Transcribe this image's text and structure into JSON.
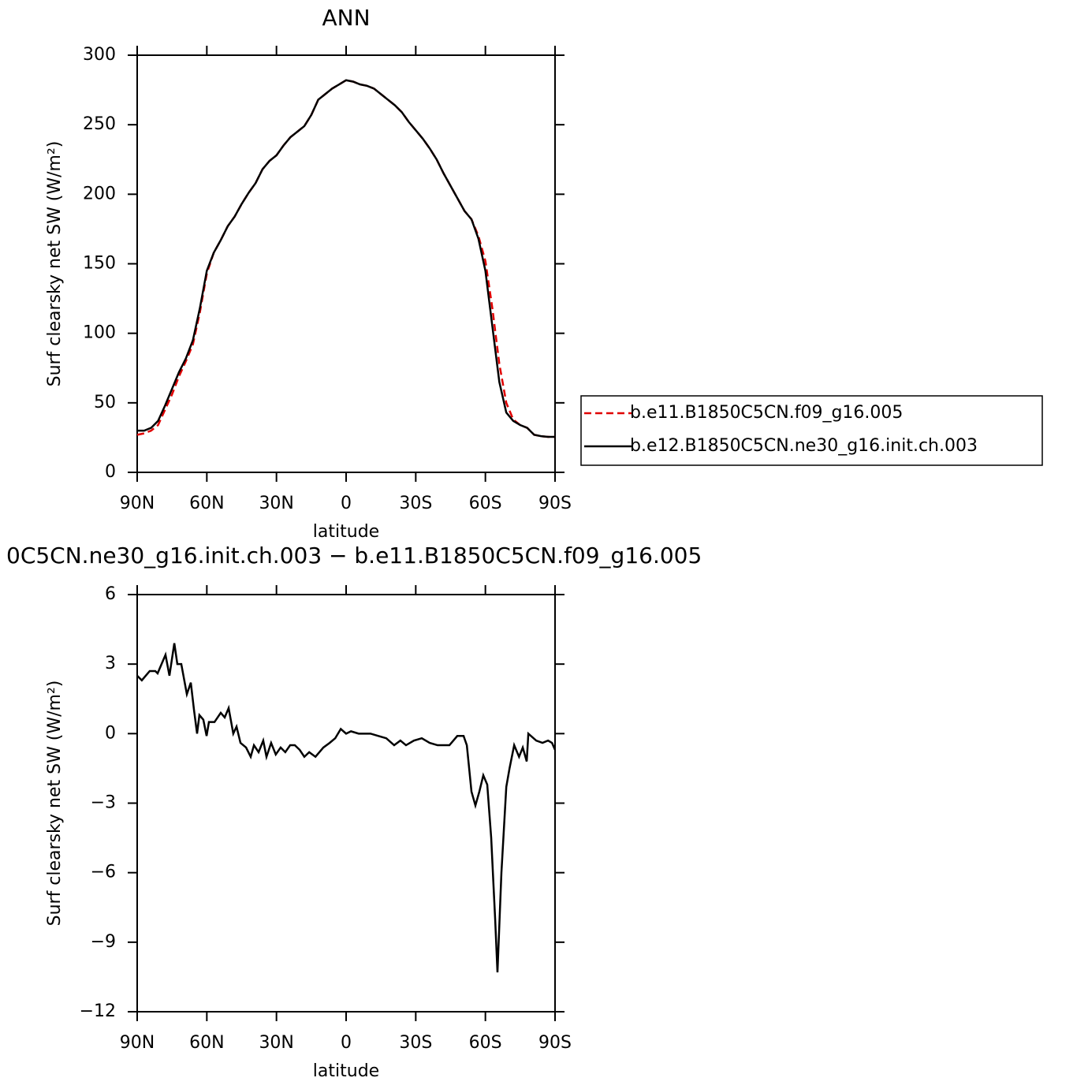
{
  "chart_data": [
    {
      "type": "line",
      "title": "ANN",
      "xlabel": "latitude",
      "ylabel": "Surf clearsky net SW (W/m²)",
      "x": [
        90,
        87,
        84,
        81,
        78,
        75,
        72,
        69,
        66,
        63,
        60,
        57,
        54,
        51,
        48,
        45,
        42,
        39,
        36,
        33,
        30,
        27,
        24,
        21,
        18,
        15,
        12,
        9,
        6,
        3,
        0,
        -3,
        -6,
        -9,
        -12,
        -15,
        -18,
        -21,
        -24,
        -27,
        -30,
        -33,
        -36,
        -39,
        -42,
        -45,
        -48,
        -51,
        -54,
        -57,
        -60,
        -63,
        -66,
        -69,
        -72,
        -75,
        -78,
        -81,
        -84,
        -87,
        -90
      ],
      "series": [
        {
          "name": "b.e11.B1850C5CN.f09_g16.005",
          "color": "#e00000",
          "linestyle": "dashed",
          "values": [
            27,
            28,
            30,
            34,
            45,
            56,
            69,
            80,
            92,
            115,
            143,
            158,
            167,
            177,
            184,
            193,
            201,
            208,
            218,
            224,
            228,
            235,
            241,
            245,
            249,
            257,
            268,
            272,
            276,
            279,
            282,
            281,
            279,
            278,
            276,
            272,
            268,
            264,
            259,
            252,
            246,
            240,
            233,
            225,
            215,
            206,
            197,
            188,
            182,
            170,
            152,
            118,
            78,
            50,
            38,
            34,
            32,
            27,
            26,
            25.5,
            25.5
          ]
        },
        {
          "name": "b.e12.B1850C5CN.ne30_g16.init.ch.003",
          "color": "#000000",
          "linestyle": "solid",
          "values": [
            30,
            30,
            32,
            37,
            48,
            60,
            72,
            82,
            95,
            118,
            145,
            158,
            167,
            177,
            184,
            193,
            201,
            208,
            218,
            224,
            228,
            235,
            241,
            245,
            249,
            257,
            268,
            272,
            276,
            279,
            282,
            281,
            279,
            278,
            276,
            272,
            268,
            264,
            259,
            252,
            246,
            240,
            233,
            225,
            215,
            206,
            197,
            188,
            182,
            168,
            145,
            105,
            65,
            43,
            37,
            34,
            32,
            27,
            26,
            25.5,
            25.5
          ]
        }
      ],
      "xlim": [
        90,
        -90
      ],
      "xticks": [
        {
          "value": 90,
          "label": "90N"
        },
        {
          "value": 60,
          "label": "60N"
        },
        {
          "value": 30,
          "label": "30N"
        },
        0,
        {
          "value": -30,
          "label": "30S"
        },
        {
          "value": -60,
          "label": "60S"
        },
        {
          "value": -90,
          "label": "90S"
        }
      ],
      "ylim": [
        0,
        300
      ],
      "yticks": [
        0,
        50,
        100,
        150,
        200,
        250,
        300
      ],
      "legend": "right"
    },
    {
      "type": "line",
      "title": "0C5CN.ne30_g16.init.ch.003 − b.e11.B1850C5CN.f09_g16.005",
      "xlabel": "latitude",
      "ylabel": "Surf clearsky net SW (W/m²)",
      "x": [
        90,
        88.0,
        84.6,
        82.2,
        81.2,
        79.5,
        77.8,
        76.1,
        74.0,
        72.7,
        71.0,
        68.6,
        66.9,
        65.5,
        64.2,
        63.2,
        61.5,
        60.1,
        59.1,
        56.7,
        54.0,
        52.3,
        50.6,
        48.6,
        47.2,
        45.5,
        43.1,
        41.1,
        39.7,
        37.7,
        35.7,
        34.3,
        32.3,
        30.3,
        28.2,
        26.2,
        24.1,
        22.1,
        20.0,
        18.0,
        15.9,
        13.2,
        9.8,
        7.1,
        4.7,
        2.3,
        0,
        -2.1,
        -5.4,
        -10.5,
        -13.9,
        -17.3,
        -20.7,
        -23.4,
        -25.8,
        -29.2,
        -32.6,
        -36.0,
        -39.4,
        -44.5,
        -47.9,
        -50.6,
        -52.0,
        -54.0,
        -55.7,
        -57.4,
        -59.1,
        -60.8,
        -62.5,
        -64.2,
        -65.2,
        -66.9,
        -69.0,
        -70.4,
        -72.4,
        -74.5,
        -76.1,
        -77.8,
        -78.5,
        -81.9,
        -84.6,
        -87.0,
        -88.7,
        -90
      ],
      "series": [
        {
          "color": "#000000",
          "linestyle": "solid",
          "values": [
            2.5,
            2.3,
            2.7,
            2.7,
            2.6,
            3.0,
            3.4,
            2.5,
            3.9,
            3.0,
            3.0,
            1.7,
            2.2,
            1.0,
            0.0,
            0.8,
            0.6,
            -0.1,
            0.5,
            0.5,
            0.9,
            0.7,
            1.1,
            0.0,
            0.3,
            -0.4,
            -0.6,
            -1.0,
            -0.5,
            -0.8,
            -0.3,
            -1.0,
            -0.4,
            -0.9,
            -0.6,
            -0.8,
            -0.5,
            -0.5,
            -0.7,
            -1.0,
            -0.8,
            -1.0,
            -0.6,
            -0.4,
            -0.2,
            0.2,
            0.0,
            0.1,
            0.0,
            0.0,
            -0.1,
            -0.2,
            -0.5,
            -0.3,
            -0.5,
            -0.3,
            -0.2,
            -0.4,
            -0.5,
            -0.5,
            -0.1,
            -0.1,
            -0.5,
            -2.5,
            -3.1,
            -2.5,
            -1.8,
            -2.2,
            -4.5,
            -8.0,
            -10.3,
            -6.0,
            -2.3,
            -1.5,
            -0.5,
            -1.0,
            -0.6,
            -1.2,
            0.0,
            -0.3,
            -0.4,
            -0.3,
            -0.4,
            -0.7
          ]
        }
      ],
      "xlim": [
        90,
        -90
      ],
      "xticks": [
        {
          "value": 90,
          "label": "90N"
        },
        {
          "value": 60,
          "label": "60N"
        },
        {
          "value": 30,
          "label": "30N"
        },
        0,
        {
          "value": -30,
          "label": "30S"
        },
        {
          "value": -60,
          "label": "60S"
        },
        {
          "value": -90,
          "label": "90S"
        }
      ],
      "ylim": [
        -12,
        6
      ],
      "yticks": [
        {
          "value": -12,
          "label": "−12"
        },
        {
          "value": -9,
          "label": "−9"
        },
        {
          "value": -6,
          "label": "−6"
        },
        {
          "value": -3,
          "label": "−3"
        },
        0,
        3,
        6
      ]
    }
  ]
}
